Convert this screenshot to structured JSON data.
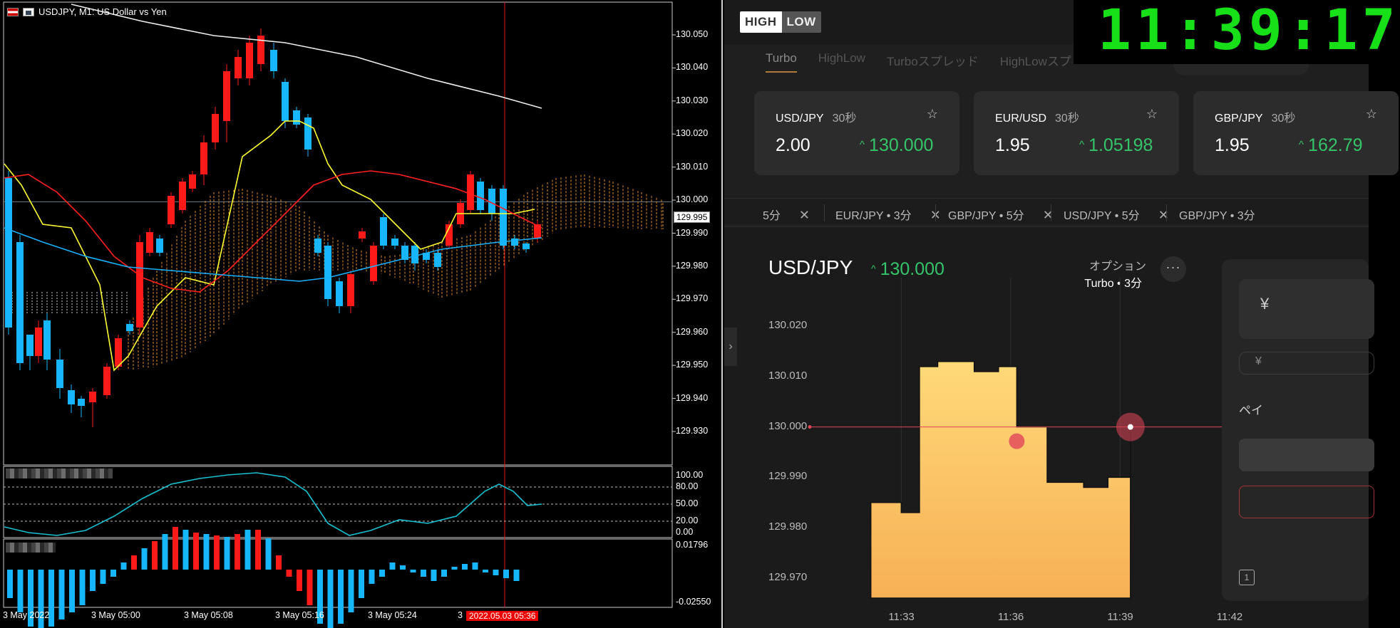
{
  "mt": {
    "title": "USDJPY, M1:  US Dollar vs Yen",
    "price_axis": [
      "130.050",
      "130.040",
      "130.030",
      "130.020",
      "130.010",
      "130.000",
      "129.990",
      "129.980",
      "129.970",
      "129.960",
      "129.950",
      "129.940",
      "129.930"
    ],
    "current_price": "129.995",
    "osc_axis": [
      "100.00",
      "80.00",
      "50.00",
      "20.00",
      "0.00"
    ],
    "hist_axis": [
      "0.01796",
      "-0.02550"
    ],
    "time_axis": [
      "3 May 2022",
      "3 May 05:00",
      "3 May 05:08",
      "3 May 05:16",
      "3 May 05:24",
      "3"
    ],
    "cursor_time": "2022.05.03 05:36"
  },
  "hl": {
    "logo": [
      "HIGH",
      "LOW"
    ],
    "clock": "11:39:17",
    "tabs": [
      "Turbo",
      "HighLow",
      "Turboスプレッド",
      "HighLowスプ"
    ],
    "cards": [
      {
        "pair": "USD/JPY",
        "duration": "30秒",
        "payout": "2.00",
        "rate": "130.000"
      },
      {
        "pair": "EUR/USD",
        "duration": "30秒",
        "payout": "1.95",
        "rate": "1.05198"
      },
      {
        "pair": "GBP/JPY",
        "duration": "30秒",
        "payout": "1.95",
        "rate": "162.79"
      }
    ],
    "open_positions": [
      "5分",
      "EUR/JPY • 3分",
      "GBP/JPY • 5分",
      "USD/JPY • 5分",
      "GBP/JPY • 3分"
    ],
    "chart": {
      "pair": "USD/JPY",
      "rate": "130.000",
      "option_label": "オプション",
      "option_value": "Turbo • 3分",
      "more": "···",
      "y_ticks": [
        "130.020",
        "130.010",
        "130.000",
        "129.990",
        "129.980",
        "129.970"
      ],
      "x_ticks": [
        "11:33",
        "11:36",
        "11:39",
        "11:42"
      ]
    },
    "right_pane": {
      "amount_prefix": "¥",
      "sub_prefix": "¥",
      "label": "ペイ"
    },
    "icons": {
      "up_arrow": "caret-up-icon",
      "star": "star-icon",
      "close": "close-icon",
      "chevron": "chevron-right-icon"
    }
  },
  "chart_data": [
    {
      "type": "line",
      "title": "",
      "xlabel": "",
      "ylabel": "",
      "x": [
        "11:32:10",
        "11:33:00",
        "11:33:30",
        "11:34:00",
        "11:35:00",
        "11:35:40",
        "11:36:10",
        "11:37:00",
        "11:38:00",
        "11:38:40",
        "11:39:17"
      ],
      "values": [
        129.985,
        129.983,
        130.012,
        130.013,
        130.011,
        130.012,
        130.0,
        129.989,
        129.988,
        129.99,
        130.0
      ],
      "ylim": [
        129.966,
        130.024
      ],
      "strike": 130.0
    }
  ]
}
